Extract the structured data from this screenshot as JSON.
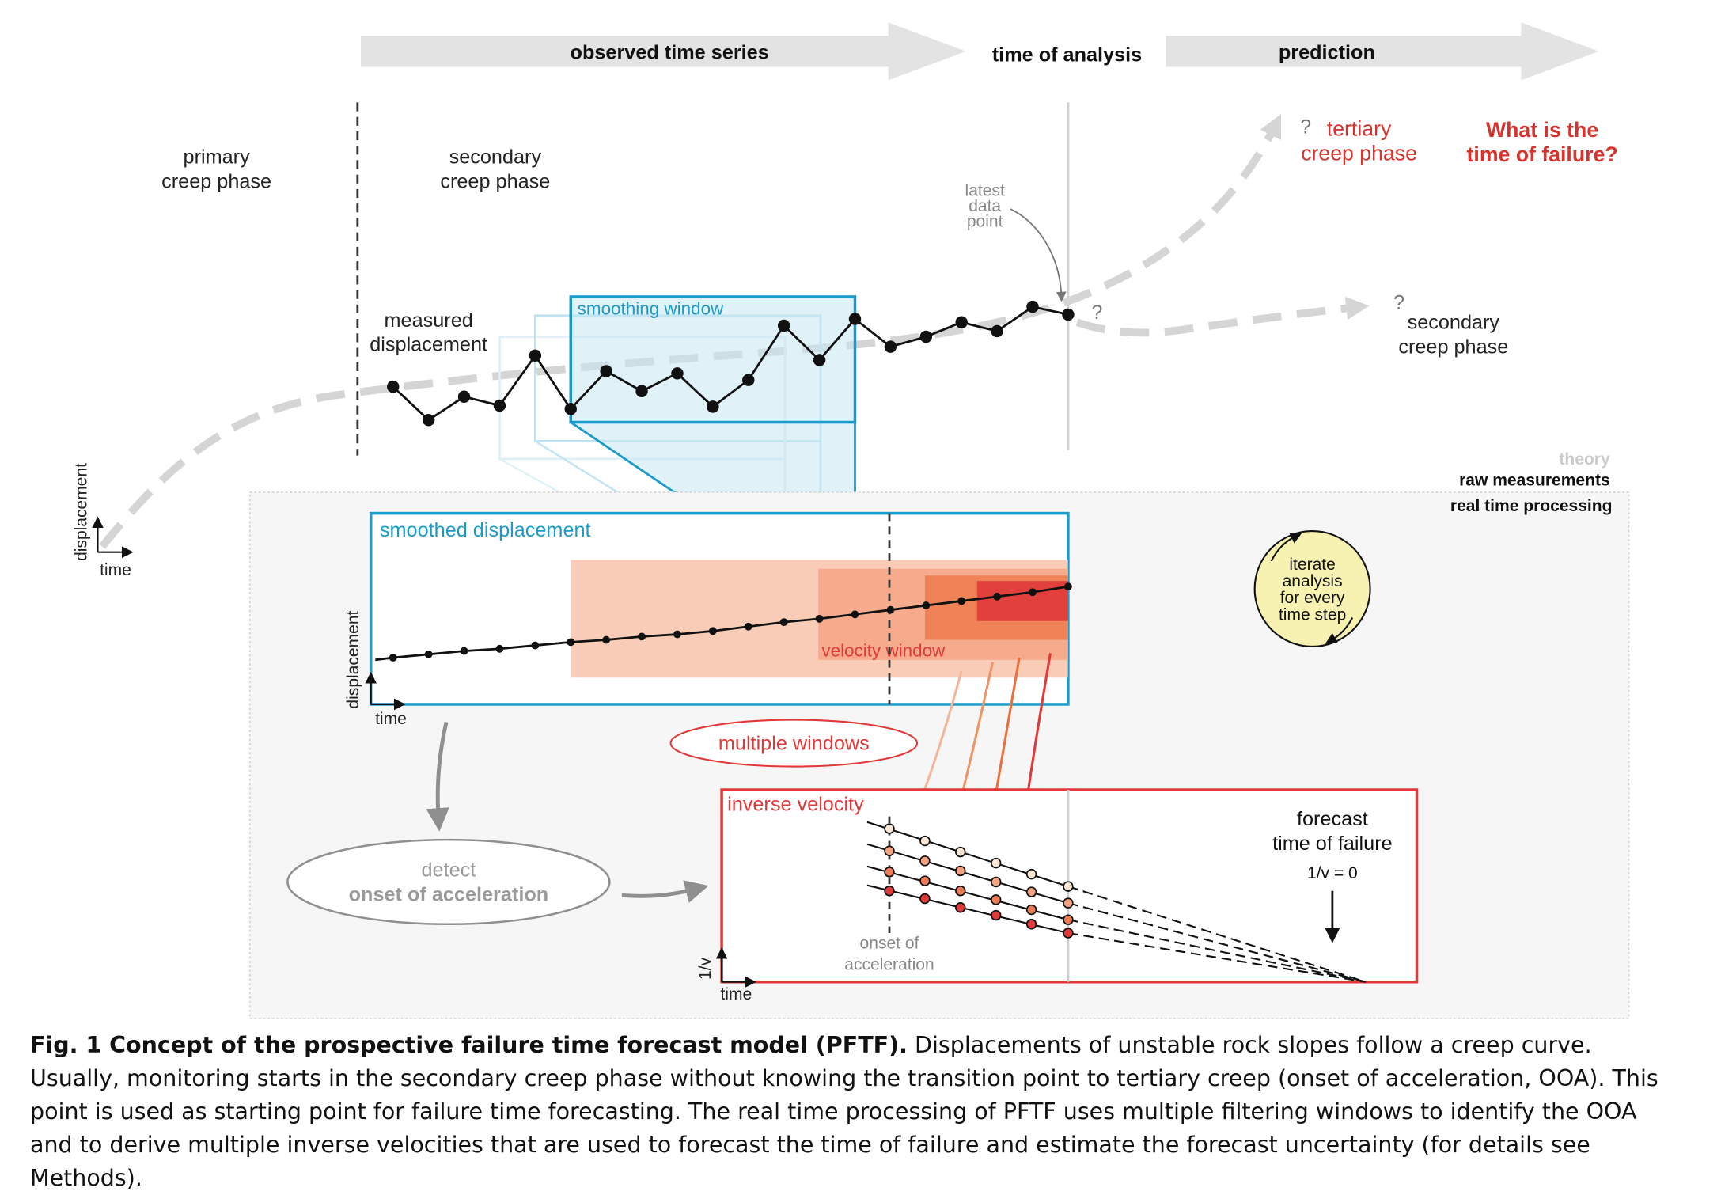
{
  "timeline": {
    "observed": "observed time series",
    "analysis": "time of analysis",
    "prediction": "prediction"
  },
  "phases": {
    "primary": [
      "primary",
      "creep phase"
    ],
    "secondary_top": [
      "secondary",
      "creep phase"
    ],
    "tertiary": [
      "tertiary",
      "creep phase"
    ],
    "secondary_right": [
      "secondary",
      "creep phase"
    ],
    "question_mark": "?"
  },
  "question": [
    "What is the",
    "time of failure?"
  ],
  "labels": {
    "latest_point": [
      "latest",
      "data",
      "point"
    ],
    "measured": [
      "measured",
      "displacement"
    ],
    "smoothing_window": "smoothing window",
    "smoothed_displacement": "smoothed displacement",
    "velocity_window": "velocity window",
    "multiple_windows": "multiple windows",
    "inverse_velocity": "inverse velocity",
    "detect": "detect",
    "onset": "onset of acceleration",
    "onset_small": [
      "onset of",
      "acceleration"
    ],
    "forecast": [
      "forecast",
      "time of failure"
    ],
    "inv_zero": "1/v = 0",
    "iterate": [
      "iterate",
      "analysis",
      "for every",
      "time step"
    ],
    "axis_displacement": "displacement",
    "axis_time": "time",
    "axis_inv": "1/v"
  },
  "legend": {
    "theory": "theory",
    "raw": "raw measurements",
    "realtime": "real time processing"
  },
  "colors": {
    "blue": "#1b9bc8",
    "red": "#e0393a",
    "orange_light": "#f7bfa5",
    "orange_mid": "#f2936a",
    "gray_arrow": "#d5d5d5",
    "question_red": "#d8322c",
    "iterate_fill": "#f7f2b2"
  },
  "caption": {
    "lead": "Fig. 1 Concept of the prospective failure time forecast model (PFTF).",
    "body": " Displacements of unstable rock slopes follow a creep curve. Usually, monitoring starts in the secondary creep phase without knowing the transition point to tertiary creep (onset of acceleration, OOA). This point is used as starting point for failure time forecasting. The real time processing of PFTF uses multiple filtering windows to identify the OOA and to derive multiple inverse velocities that are used to forecast the time of failure and estimate the forecast uncertainty (for details see Methods)."
  }
}
